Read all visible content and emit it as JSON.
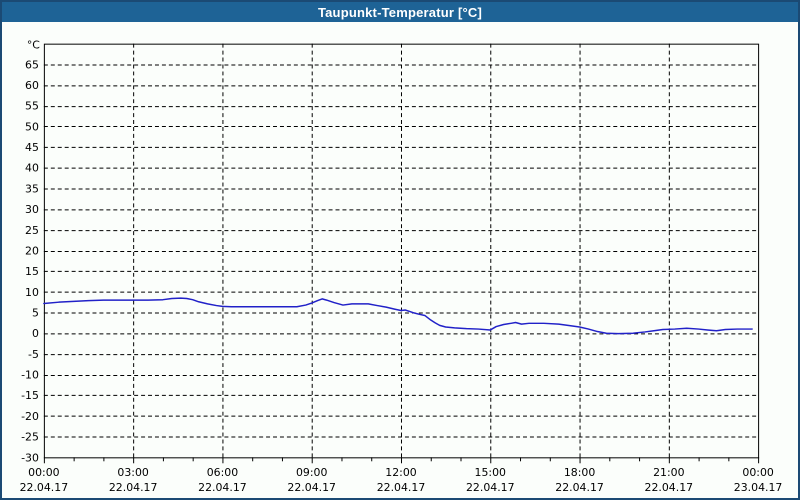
{
  "window": {
    "title": "Taupunkt-Temperatur [°C]"
  },
  "colors": {
    "titlebar_bg": "#1E6396",
    "window_border": "#1B4A74",
    "background": "#FBFEFB",
    "grid": "#000000",
    "text": "#000000",
    "series_line": "#2121C8"
  },
  "chart_data": {
    "type": "line",
    "title": "Taupunkt-Temperatur [°C]",
    "grid": "dashed",
    "legend": "none",
    "y_axis": {
      "unit_label": "°C",
      "plot_min": -30,
      "plot_max": 70,
      "tick_step": 5,
      "tick_labels": [
        65,
        60,
        55,
        50,
        45,
        40,
        35,
        30,
        25,
        20,
        15,
        10,
        5,
        0,
        -5,
        -10,
        -15,
        -20,
        -25,
        -30
      ]
    },
    "x_axis": {
      "range_hours": [
        0,
        24
      ],
      "minor_tick_every_hours": 1,
      "major_tick_every_hours": 3,
      "major_labels": [
        {
          "time": "00:00",
          "date": "22.04.17"
        },
        {
          "time": "03:00",
          "date": "22.04.17"
        },
        {
          "time": "06:00",
          "date": "22.04.17"
        },
        {
          "time": "09:00",
          "date": "22.04.17"
        },
        {
          "time": "12:00",
          "date": "22.04.17"
        },
        {
          "time": "15:00",
          "date": "22.04.17"
        },
        {
          "time": "18:00",
          "date": "22.04.17"
        },
        {
          "time": "21:00",
          "date": "22.04.17"
        },
        {
          "time": "00:00",
          "date": "23.04.17"
        }
      ]
    },
    "series": [
      {
        "name": "Taupunkt-Temperatur",
        "color": "#2121C8",
        "points_hour_value": [
          [
            0.0,
            7.2
          ],
          [
            0.5,
            7.5
          ],
          [
            1.0,
            7.7
          ],
          [
            1.5,
            7.9
          ],
          [
            2.0,
            8.0
          ],
          [
            2.5,
            8.0
          ],
          [
            3.0,
            8.0
          ],
          [
            3.5,
            8.0
          ],
          [
            4.0,
            8.1
          ],
          [
            4.3,
            8.4
          ],
          [
            4.6,
            8.5
          ],
          [
            4.8,
            8.4
          ],
          [
            5.0,
            8.1
          ],
          [
            5.2,
            7.6
          ],
          [
            5.5,
            7.1
          ],
          [
            5.8,
            6.7
          ],
          [
            6.0,
            6.5
          ],
          [
            6.3,
            6.4
          ],
          [
            7.0,
            6.4
          ],
          [
            7.5,
            6.4
          ],
          [
            8.0,
            6.4
          ],
          [
            8.5,
            6.4
          ],
          [
            8.8,
            6.8
          ],
          [
            9.0,
            7.3
          ],
          [
            9.2,
            7.9
          ],
          [
            9.35,
            8.3
          ],
          [
            9.5,
            8.0
          ],
          [
            9.75,
            7.4
          ],
          [
            10.05,
            6.8
          ],
          [
            10.35,
            7.1
          ],
          [
            10.9,
            7.1
          ],
          [
            11.2,
            6.7
          ],
          [
            11.5,
            6.3
          ],
          [
            11.8,
            5.8
          ],
          [
            12.0,
            5.5
          ],
          [
            12.15,
            5.6
          ],
          [
            12.4,
            5.0
          ],
          [
            12.6,
            4.6
          ],
          [
            12.8,
            4.3
          ],
          [
            13.0,
            3.2
          ],
          [
            13.15,
            2.5
          ],
          [
            13.3,
            1.9
          ],
          [
            13.5,
            1.5
          ],
          [
            13.8,
            1.3
          ],
          [
            14.2,
            1.1
          ],
          [
            14.6,
            1.0
          ],
          [
            15.0,
            0.8
          ],
          [
            15.2,
            1.6
          ],
          [
            15.45,
            2.1
          ],
          [
            15.7,
            2.4
          ],
          [
            15.85,
            2.6
          ],
          [
            16.05,
            2.2
          ],
          [
            16.3,
            2.4
          ],
          [
            16.8,
            2.4
          ],
          [
            17.3,
            2.2
          ],
          [
            17.7,
            1.8
          ],
          [
            18.0,
            1.5
          ],
          [
            18.3,
            1.0
          ],
          [
            18.6,
            0.4
          ],
          [
            18.9,
            0.0
          ],
          [
            19.3,
            -0.1
          ],
          [
            19.8,
            0.0
          ],
          [
            20.2,
            0.3
          ],
          [
            20.5,
            0.6
          ],
          [
            20.8,
            0.9
          ],
          [
            21.2,
            1.0
          ],
          [
            21.6,
            1.2
          ],
          [
            22.0,
            1.0
          ],
          [
            22.3,
            0.8
          ],
          [
            22.6,
            0.6
          ],
          [
            22.9,
            0.9
          ],
          [
            23.3,
            1.0
          ],
          [
            23.8,
            1.0
          ]
        ]
      }
    ]
  }
}
